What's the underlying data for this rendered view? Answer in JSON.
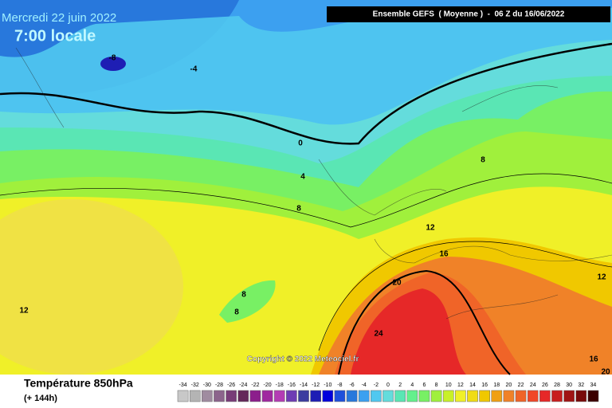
{
  "header": {
    "date": "Mercredi 22 juin 2022",
    "time": "7:00 locale",
    "model": "Ensemble GEFS  ( Moyenne )  -  06 Z du 16/06/2022"
  },
  "map": {
    "contour_labels": [
      "-8",
      "-4",
      "0",
      "4",
      "8",
      "8",
      "12",
      "16",
      "20",
      "24",
      "8",
      "8",
      "12",
      "12",
      "16",
      "20"
    ],
    "copyright": "Copyright © 2022 Meteociel.fr"
  },
  "footer": {
    "title": "Température 850hPa",
    "lead": "(+ 144h)"
  },
  "legend": {
    "values": [
      -34,
      -32,
      -30,
      -28,
      -26,
      -24,
      -22,
      -20,
      -18,
      -16,
      -14,
      -12,
      -10,
      -8,
      -6,
      -4,
      -2,
      0,
      2,
      4,
      6,
      8,
      10,
      12,
      14,
      16,
      18,
      20,
      22,
      24,
      26,
      28,
      30,
      32,
      34
    ],
    "colors": [
      "#c8c8c8",
      "#b4b4b4",
      "#a08ca0",
      "#8c648c",
      "#783c78",
      "#64285a",
      "#8c1e8c",
      "#a028a0",
      "#b43cb4",
      "#6e3cb4",
      "#3c3ca0",
      "#1e1eb4",
      "#0000dc",
      "#1e50dc",
      "#2878dc",
      "#3ca0f0",
      "#50c8f0",
      "#64dcdc",
      "#5ae6b4",
      "#64f08c",
      "#78f064",
      "#a0f03c",
      "#c8f028",
      "#f0f028",
      "#f0dc14",
      "#f0c800",
      "#f0a014",
      "#f08228",
      "#f06428",
      "#f04628",
      "#e62828",
      "#c81e1e",
      "#a01414",
      "#780a0a",
      "#3c0000"
    ]
  }
}
